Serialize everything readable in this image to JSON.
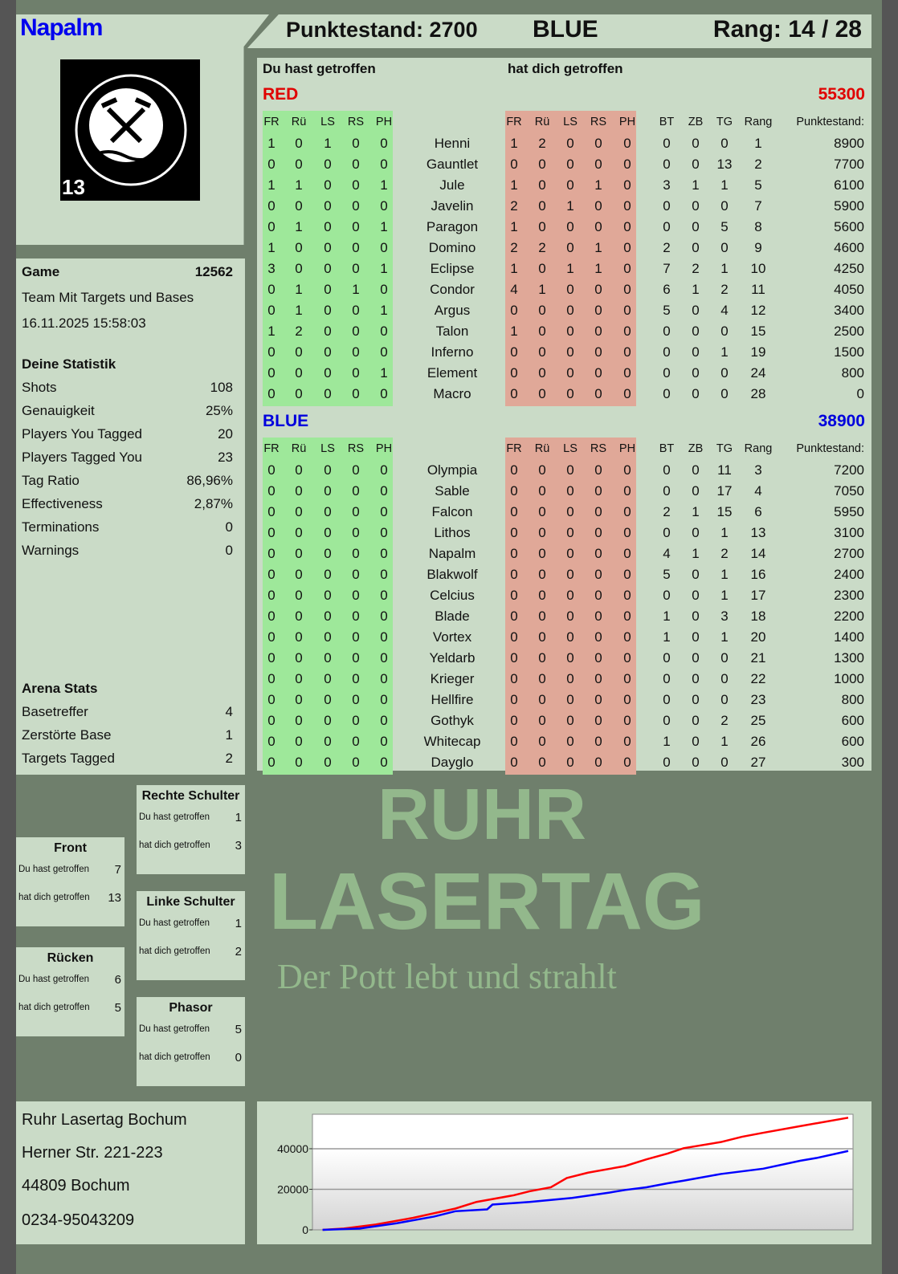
{
  "player": {
    "name": "Napalm",
    "name_color": "#0000ee",
    "team": "BLUE",
    "score_label": "Punktestand: 2700",
    "rank_label": "Rang: 14 / 28",
    "logo_text": "RUHR LASERTAG",
    "logo_number": "13"
  },
  "game": {
    "label": "Game",
    "id": "12562",
    "mode": "Team Mit Targets und Bases",
    "datetime": "16.11.2025 15:58:03"
  },
  "stats": {
    "title": "Deine Statistik",
    "items": [
      {
        "label": "Shots",
        "value": "108"
      },
      {
        "label": "Genauigkeit",
        "value": "25%"
      },
      {
        "label": "Players You Tagged",
        "value": "20"
      },
      {
        "label": "Players Tagged You",
        "value": "23"
      },
      {
        "label": "Tag Ratio",
        "value": "86,96%"
      },
      {
        "label": "Effectiveness",
        "value": "2,87%"
      },
      {
        "label": "Terminations",
        "value": "0"
      },
      {
        "label": "Warnings",
        "value": "0"
      }
    ]
  },
  "arena": {
    "title": "Arena Stats",
    "items": [
      {
        "label": "Basetreffer",
        "value": "4"
      },
      {
        "label": "Zerstörte Base",
        "value": "1"
      },
      {
        "label": "Targets Tagged",
        "value": "2"
      }
    ]
  },
  "hitzones": [
    {
      "title": "Rechte Schulter",
      "you_hit_label": "Du hast getroffen",
      "you_hit": "1",
      "hit_you_label": "hat dich getroffen",
      "hit_you": "3"
    },
    {
      "title": "Front",
      "you_hit_label": "Du hast getroffen",
      "you_hit": "7",
      "hit_you_label": "hat dich getroffen",
      "hit_you": "13"
    },
    {
      "title": "Linke Schulter",
      "you_hit_label": "Du hast getroffen",
      "you_hit": "1",
      "hit_you_label": "hat dich getroffen",
      "hit_you": "2"
    },
    {
      "title": "Rücken",
      "you_hit_label": "Du hast getroffen",
      "you_hit": "6",
      "hit_you_label": "hat dich getroffen",
      "hit_you": "5"
    },
    {
      "title": "Phasor",
      "you_hit_label": "Du hast getroffen",
      "you_hit": "5",
      "hit_you_label": "hat dich getroffen",
      "hit_you": "0"
    }
  ],
  "address": [
    "Ruhr Lasertag Bochum",
    "Herner Str. 221-223",
    "44809 Bochum",
    "0234-95043209"
  ],
  "watermark": {
    "line1": "RUHR",
    "line2": "LASERTAG",
    "line3": "Der Pott lebt und strahlt"
  },
  "table": {
    "you_hit_label": "Du hast getroffen",
    "hit_you_label": "hat dich getroffen",
    "hit_columns": [
      "FR",
      "Rü",
      "LS",
      "RS",
      "PH"
    ],
    "stat_columns": [
      "BT",
      "ZB",
      "TG",
      "Rang",
      "Punktestand:"
    ],
    "colors": {
      "you_hit_bg": "#9ee89a",
      "hit_you_bg": "#e0a898"
    },
    "teams": [
      {
        "name": "RED",
        "total": "55300",
        "color": "#e00000",
        "players": [
          {
            "name": "Henni",
            "you_hit": [
              1,
              0,
              1,
              0,
              0
            ],
            "hit_you": [
              1,
              2,
              0,
              0,
              0
            ],
            "bt": 0,
            "zb": 0,
            "tg": 0,
            "rank": 1,
            "score": 8900
          },
          {
            "name": "Gauntlet",
            "you_hit": [
              0,
              0,
              0,
              0,
              0
            ],
            "hit_you": [
              0,
              0,
              0,
              0,
              0
            ],
            "bt": 0,
            "zb": 0,
            "tg": 13,
            "rank": 2,
            "score": 7700
          },
          {
            "name": "Jule",
            "you_hit": [
              1,
              1,
              0,
              0,
              1
            ],
            "hit_you": [
              1,
              0,
              0,
              1,
              0
            ],
            "bt": 3,
            "zb": 1,
            "tg": 1,
            "rank": 5,
            "score": 6100
          },
          {
            "name": "Javelin",
            "you_hit": [
              0,
              0,
              0,
              0,
              0
            ],
            "hit_you": [
              2,
              0,
              1,
              0,
              0
            ],
            "bt": 0,
            "zb": 0,
            "tg": 0,
            "rank": 7,
            "score": 5900
          },
          {
            "name": "Paragon",
            "you_hit": [
              0,
              1,
              0,
              0,
              1
            ],
            "hit_you": [
              1,
              0,
              0,
              0,
              0
            ],
            "bt": 0,
            "zb": 0,
            "tg": 5,
            "rank": 8,
            "score": 5600
          },
          {
            "name": "Domino",
            "you_hit": [
              1,
              0,
              0,
              0,
              0
            ],
            "hit_you": [
              2,
              2,
              0,
              1,
              0
            ],
            "bt": 2,
            "zb": 0,
            "tg": 0,
            "rank": 9,
            "score": 4600
          },
          {
            "name": "Eclipse",
            "you_hit": [
              3,
              0,
              0,
              0,
              1
            ],
            "hit_you": [
              1,
              0,
              1,
              1,
              0
            ],
            "bt": 7,
            "zb": 2,
            "tg": 1,
            "rank": 10,
            "score": 4250
          },
          {
            "name": "Condor",
            "you_hit": [
              0,
              1,
              0,
              1,
              0
            ],
            "hit_you": [
              4,
              1,
              0,
              0,
              0
            ],
            "bt": 6,
            "zb": 1,
            "tg": 2,
            "rank": 11,
            "score": 4050
          },
          {
            "name": "Argus",
            "you_hit": [
              0,
              1,
              0,
              0,
              1
            ],
            "hit_you": [
              0,
              0,
              0,
              0,
              0
            ],
            "bt": 5,
            "zb": 0,
            "tg": 4,
            "rank": 12,
            "score": 3400
          },
          {
            "name": "Talon",
            "you_hit": [
              1,
              2,
              0,
              0,
              0
            ],
            "hit_you": [
              1,
              0,
              0,
              0,
              0
            ],
            "bt": 0,
            "zb": 0,
            "tg": 0,
            "rank": 15,
            "score": 2500
          },
          {
            "name": "Inferno",
            "you_hit": [
              0,
              0,
              0,
              0,
              0
            ],
            "hit_you": [
              0,
              0,
              0,
              0,
              0
            ],
            "bt": 0,
            "zb": 0,
            "tg": 1,
            "rank": 19,
            "score": 1500
          },
          {
            "name": "Element",
            "you_hit": [
              0,
              0,
              0,
              0,
              1
            ],
            "hit_you": [
              0,
              0,
              0,
              0,
              0
            ],
            "bt": 0,
            "zb": 0,
            "tg": 0,
            "rank": 24,
            "score": 800
          },
          {
            "name": "Macro",
            "you_hit": [
              0,
              0,
              0,
              0,
              0
            ],
            "hit_you": [
              0,
              0,
              0,
              0,
              0
            ],
            "bt": 0,
            "zb": 0,
            "tg": 0,
            "rank": 28,
            "score": 0
          }
        ]
      },
      {
        "name": "BLUE",
        "total": "38900",
        "color": "#0000dd",
        "players": [
          {
            "name": "Olympia",
            "you_hit": [
              0,
              0,
              0,
              0,
              0
            ],
            "hit_you": [
              0,
              0,
              0,
              0,
              0
            ],
            "bt": 0,
            "zb": 0,
            "tg": 11,
            "rank": 3,
            "score": 7200
          },
          {
            "name": "Sable",
            "you_hit": [
              0,
              0,
              0,
              0,
              0
            ],
            "hit_you": [
              0,
              0,
              0,
              0,
              0
            ],
            "bt": 0,
            "zb": 0,
            "tg": 17,
            "rank": 4,
            "score": 7050
          },
          {
            "name": "Falcon",
            "you_hit": [
              0,
              0,
              0,
              0,
              0
            ],
            "hit_you": [
              0,
              0,
              0,
              0,
              0
            ],
            "bt": 2,
            "zb": 1,
            "tg": 15,
            "rank": 6,
            "score": 5950
          },
          {
            "name": "Lithos",
            "you_hit": [
              0,
              0,
              0,
              0,
              0
            ],
            "hit_you": [
              0,
              0,
              0,
              0,
              0
            ],
            "bt": 0,
            "zb": 0,
            "tg": 1,
            "rank": 13,
            "score": 3100
          },
          {
            "name": "Napalm",
            "you_hit": [
              0,
              0,
              0,
              0,
              0
            ],
            "hit_you": [
              0,
              0,
              0,
              0,
              0
            ],
            "bt": 4,
            "zb": 1,
            "tg": 2,
            "rank": 14,
            "score": 2700
          },
          {
            "name": "Blakwolf",
            "you_hit": [
              0,
              0,
              0,
              0,
              0
            ],
            "hit_you": [
              0,
              0,
              0,
              0,
              0
            ],
            "bt": 5,
            "zb": 0,
            "tg": 1,
            "rank": 16,
            "score": 2400
          },
          {
            "name": "Celcius",
            "you_hit": [
              0,
              0,
              0,
              0,
              0
            ],
            "hit_you": [
              0,
              0,
              0,
              0,
              0
            ],
            "bt": 0,
            "zb": 0,
            "tg": 1,
            "rank": 17,
            "score": 2300
          },
          {
            "name": "Blade",
            "you_hit": [
              0,
              0,
              0,
              0,
              0
            ],
            "hit_you": [
              0,
              0,
              0,
              0,
              0
            ],
            "bt": 1,
            "zb": 0,
            "tg": 3,
            "rank": 18,
            "score": 2200
          },
          {
            "name": "Vortex",
            "you_hit": [
              0,
              0,
              0,
              0,
              0
            ],
            "hit_you": [
              0,
              0,
              0,
              0,
              0
            ],
            "bt": 1,
            "zb": 0,
            "tg": 1,
            "rank": 20,
            "score": 1400
          },
          {
            "name": "Yeldarb",
            "you_hit": [
              0,
              0,
              0,
              0,
              0
            ],
            "hit_you": [
              0,
              0,
              0,
              0,
              0
            ],
            "bt": 0,
            "zb": 0,
            "tg": 0,
            "rank": 21,
            "score": 1300
          },
          {
            "name": "Krieger",
            "you_hit": [
              0,
              0,
              0,
              0,
              0
            ],
            "hit_you": [
              0,
              0,
              0,
              0,
              0
            ],
            "bt": 0,
            "zb": 0,
            "tg": 0,
            "rank": 22,
            "score": 1000
          },
          {
            "name": "Hellfire",
            "you_hit": [
              0,
              0,
              0,
              0,
              0
            ],
            "hit_you": [
              0,
              0,
              0,
              0,
              0
            ],
            "bt": 0,
            "zb": 0,
            "tg": 0,
            "rank": 23,
            "score": 800
          },
          {
            "name": "Gothyk",
            "you_hit": [
              0,
              0,
              0,
              0,
              0
            ],
            "hit_you": [
              0,
              0,
              0,
              0,
              0
            ],
            "bt": 0,
            "zb": 0,
            "tg": 2,
            "rank": 25,
            "score": 600
          },
          {
            "name": "Whitecap",
            "you_hit": [
              0,
              0,
              0,
              0,
              0
            ],
            "hit_you": [
              0,
              0,
              0,
              0,
              0
            ],
            "bt": 1,
            "zb": 0,
            "tg": 1,
            "rank": 26,
            "score": 600
          },
          {
            "name": "Dayglo",
            "you_hit": [
              0,
              0,
              0,
              0,
              0
            ],
            "hit_you": [
              0,
              0,
              0,
              0,
              0
            ],
            "bt": 0,
            "zb": 0,
            "tg": 0,
            "rank": 27,
            "score": 300
          }
        ]
      }
    ]
  },
  "chart_data": {
    "type": "line",
    "title": "",
    "xlabel": "",
    "ylabel": "",
    "ylim": [
      0,
      57000
    ],
    "yticks": [
      "0",
      "20000",
      "40000"
    ],
    "grid": true,
    "series": [
      {
        "color": "#ff0000",
        "x": [
          0.01,
          0.05,
          0.11,
          0.18,
          0.26,
          0.3,
          0.37,
          0.4,
          0.44,
          0.47,
          0.51,
          0.58,
          0.62,
          0.66,
          0.69,
          0.76,
          0.8,
          0.84,
          0.91,
          1.0
        ],
        "values": [
          0,
          660,
          2620,
          5900,
          10490,
          13770,
          17050,
          19020,
          20980,
          25570,
          28200,
          31480,
          34750,
          37640,
          40260,
          43280,
          45900,
          47870,
          51150,
          55300
        ]
      },
      {
        "color": "#0000ff",
        "x": [
          0.01,
          0.08,
          0.15,
          0.22,
          0.26,
          0.32,
          0.33,
          0.4,
          0.48,
          0.55,
          0.58,
          0.62,
          0.66,
          0.69,
          0.76,
          0.84,
          0.91,
          0.94,
          1.0
        ],
        "values": [
          0,
          660,
          3280,
          6560,
          9180,
          10100,
          12460,
          13770,
          15740,
          18360,
          19670,
          20980,
          22950,
          24260,
          27540,
          30160,
          34100,
          35410,
          38900
        ]
      }
    ]
  }
}
